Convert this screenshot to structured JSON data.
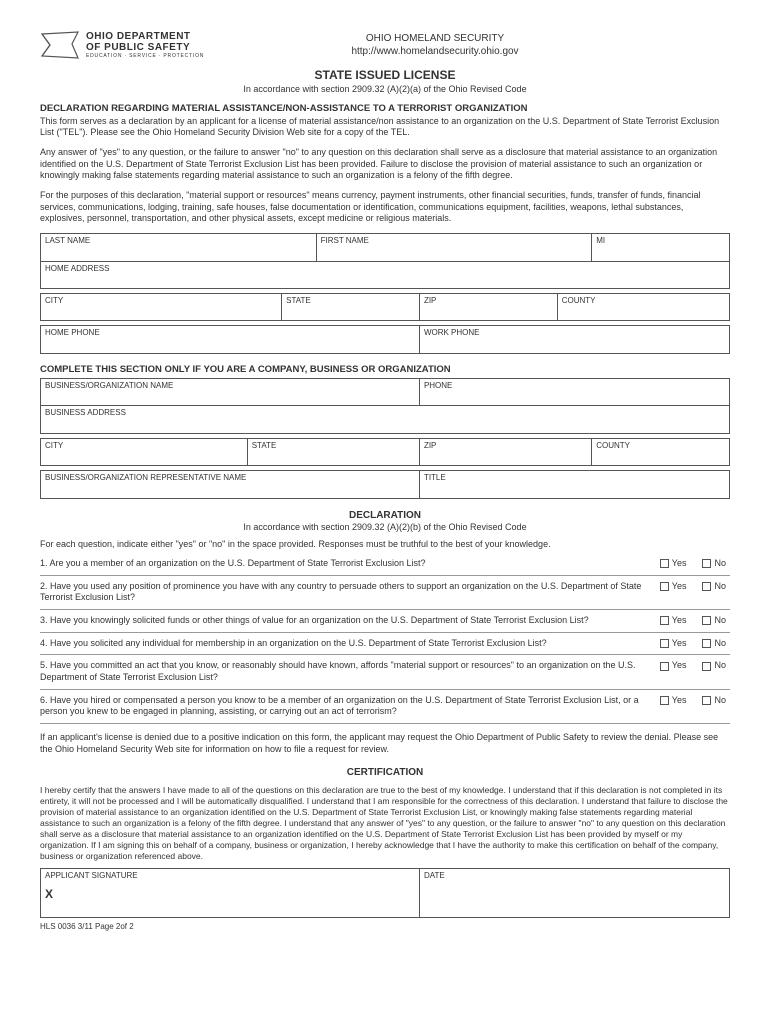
{
  "header": {
    "dept_line1": "OHIO DEPARTMENT",
    "dept_line2": "OF PUBLIC SAFETY",
    "dept_tagline": "EDUCATION · SERVICE · PROTECTION",
    "agency": "OHIO HOMELAND SECURITY",
    "url": "http://www.homelandsecurity.ohio.gov"
  },
  "title": {
    "main": "STATE ISSUED LICENSE",
    "sub": "In accordance with section 2909.32 (A)(2)(a) of the Ohio Revised Code"
  },
  "declaration_header": "DECLARATION REGARDING MATERIAL ASSISTANCE/NON-ASSISTANCE TO A TERRORIST ORGANIZATION",
  "para1": "This form serves as a declaration by an applicant for a license of material assistance/non assistance to an organization on the U.S. Department of State Terrorist Exclusion List (\"TEL\"). Please see the Ohio Homeland Security Division Web site for a copy of the TEL.",
  "para2": "Any answer of \"yes\" to any question, or the failure to answer \"no\" to any question on this declaration shall serve as a disclosure that material assistance to an organization identified on the U.S. Department of State Terrorist Exclusion List has been provided. Failure to disclose the provision of material assistance to such an organization or knowingly making false statements regarding material assistance to such an organization is a felony of the fifth degree.",
  "para3": "For the purposes of this declaration, \"material support or resources\" means currency, payment instruments, other financial securities, funds, transfer of funds, financial services, communications, lodging, training, safe houses, false documentation or identification, communications equipment, facilities, weapons, lethal substances, explosives, personnel, transportation, and other physical assets, except medicine or religious materials.",
  "personal_fields": {
    "last_name": "LAST NAME",
    "first_name": "FIRST NAME",
    "mi": "MI",
    "home_address": "HOME ADDRESS",
    "city": "CITY",
    "state": "STATE",
    "zip": "ZIP",
    "county": "COUNTY",
    "home_phone": "HOME PHONE",
    "work_phone": "WORK PHONE"
  },
  "business_section_header": "COMPLETE THIS SECTION ONLY IF YOU ARE A COMPANY, BUSINESS OR ORGANIZATION",
  "business_fields": {
    "org_name": "BUSINESS/ORGANIZATION NAME",
    "phone": "PHONE",
    "address": "BUSINESS ADDRESS",
    "city": "CITY",
    "state": "STATE",
    "zip": "ZIP",
    "county": "COUNTY",
    "rep_name": "BUSINESS/ORGANIZATION REPRESENTATIVE NAME",
    "title": "TITLE"
  },
  "declaration_title": "DECLARATION",
  "declaration_sub": "In accordance with section 2909.32 (A)(2)(b) of the Ohio Revised Code",
  "declaration_intro": "For each question, indicate either \"yes\" or \"no\" in the space provided. Responses must be truthful to the best of your knowledge.",
  "questions": [
    "1. Are you a member of an organization on the U.S. Department of State Terrorist Exclusion List?",
    "2. Have you used any position of prominence you have with any country to persuade others to support an organization on the U.S. Department of State Terrorist Exclusion List?",
    "3. Have you knowingly solicited funds or other things of value for an organization on the U.S. Department of State Terrorist Exclusion List?",
    "4. Have you solicited any individual for membership in an organization on the U.S. Department of State Terrorist Exclusion List?",
    "5. Have you committed an act that you know, or reasonably should have known, affords \"material support or resources\" to an organization on the U.S. Department of State Terrorist Exclusion List?",
    "6. Have you hired or compensated a person you know to be a member of an organization on the U.S. Department of State Terrorist Exclusion List, or a person you knew to be engaged in planning, assisting, or carrying out an act of terrorism?"
  ],
  "yes_label": "Yes",
  "no_label": "No",
  "review_text": "If an applicant's license is denied due to a positive indication on this form, the applicant may request the Ohio Department of Public Safety to review the denial. Please see the Ohio Homeland Security Web site for information on how to file a request for review.",
  "certification_title": "CERTIFICATION",
  "certification_text": "I hereby certify that the answers I have made to all of the questions on this declaration are true to the best of my knowledge. I understand that if this declaration is not completed in its entirety, it will not be processed and I will be automatically disqualified. I understand that I am responsible for the correctness of this declaration. I understand that failure to disclose the provision of material assistance to an organization identified on the U.S. Department of State Terrorist Exclusion List, or knowingly making false statements regarding material assistance to such an organization is a felony of the fifth degree. I understand that any answer of \"yes\" to any question, or the failure to answer \"no\" to any question on this declaration shall serve as a disclosure that material assistance to an organization identified on the U.S. Department of State Terrorist Exclusion List has been provided by myself or my organization. If I am signing this on behalf of a company, business or organization, I hereby acknowledge that I have the authority to make this certification on behalf of the company, business or organization referenced above.",
  "signature_fields": {
    "signature": "APPLICANT SIGNATURE",
    "date": "DATE"
  },
  "sig_x": "X",
  "footer": "HLS 0036 3/11 Page 2of 2"
}
